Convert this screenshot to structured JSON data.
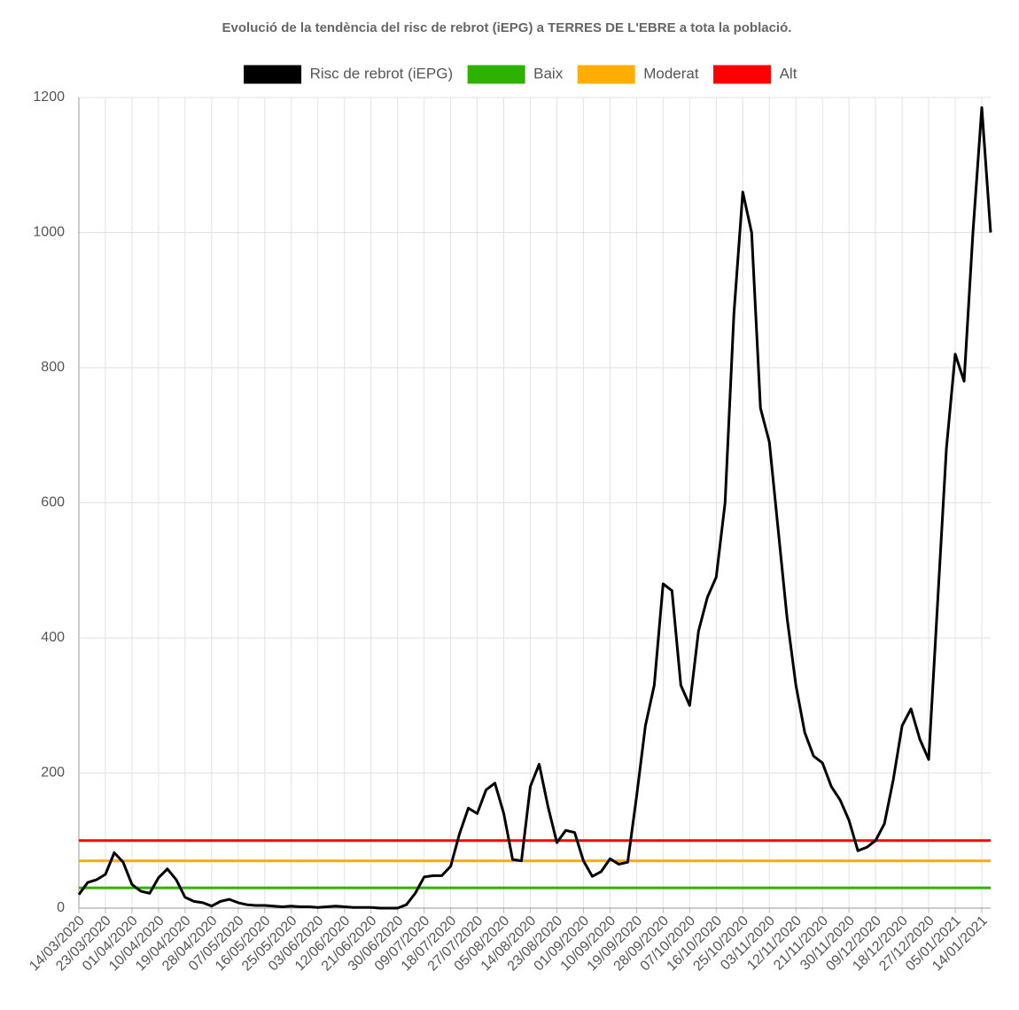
{
  "chart_data": {
    "type": "line",
    "title": "Evolució de la tendència del risc de rebrot (iEPG) a TERRES DE L'EBRE a tota la població.",
    "categories": [
      "14/03/2020",
      null,
      null,
      "23/03/2020",
      null,
      null,
      "01/04/2020",
      null,
      null,
      "10/04/2020",
      null,
      null,
      "19/04/2020",
      null,
      null,
      "28/04/2020",
      null,
      null,
      "07/05/2020",
      null,
      null,
      "16/05/2020",
      null,
      null,
      "25/05/2020",
      null,
      null,
      "03/06/2020",
      null,
      null,
      "12/06/2020",
      null,
      null,
      "21/06/2020",
      null,
      null,
      "30/06/2020",
      null,
      null,
      "09/07/2020",
      null,
      null,
      "18/07/2020",
      null,
      null,
      "27/07/2020",
      null,
      null,
      "05/08/2020",
      null,
      null,
      "14/08/2020",
      null,
      null,
      "23/08/2020",
      null,
      null,
      "01/09/2020",
      null,
      null,
      "10/09/2020",
      null,
      null,
      "19/09/2020",
      null,
      null,
      "28/09/2020",
      null,
      null,
      "07/10/2020",
      null,
      null,
      "16/10/2020",
      null,
      null,
      "25/10/2020",
      null,
      null,
      "03/11/2020",
      null,
      null,
      "12/11/2020",
      null,
      null,
      "21/11/2020",
      null,
      null,
      "30/11/2020",
      null,
      null,
      "09/12/2020",
      null,
      null,
      "18/12/2020",
      null,
      null,
      "27/12/2020",
      null,
      null,
      "05/01/2021",
      null,
      null,
      "14/01/2021",
      null
    ],
    "series": [
      {
        "name": "Risc de rebrot (iEPG)",
        "color": "#000000",
        "values": [
          20,
          38,
          42,
          50,
          82,
          68,
          35,
          25,
          22,
          45,
          58,
          42,
          16,
          10,
          8,
          3,
          10,
          13,
          8,
          5,
          4,
          4,
          3,
          2,
          3,
          2,
          2,
          1,
          2,
          3,
          2,
          1,
          1,
          1,
          0,
          0,
          0,
          5,
          22,
          46,
          48,
          48,
          62,
          110,
          148,
          140,
          175,
          185,
          140,
          72,
          70,
          180,
          213,
          150,
          97,
          115,
          112,
          70,
          47,
          54,
          73,
          65,
          68,
          165,
          270,
          330,
          480,
          470,
          330,
          300,
          410,
          460,
          490,
          600,
          880,
          1060,
          1000,
          740,
          690,
          560,
          430,
          330,
          260,
          225,
          215,
          180,
          160,
          130,
          85,
          90,
          100,
          125,
          190,
          270,
          295,
          250,
          220,
          450,
          680,
          820,
          780,
          1000,
          1185,
          1000
        ]
      }
    ],
    "thresholds": [
      {
        "name": "Baix",
        "color": "#2db200",
        "value": 30
      },
      {
        "name": "Moderat",
        "color": "#ffae00",
        "value": 70
      },
      {
        "name": "Alt",
        "color": "#ff0000",
        "value": 100
      }
    ],
    "ylim": [
      0,
      1200
    ],
    "yticks": [
      0,
      200,
      400,
      600,
      800,
      1000,
      1200
    ],
    "grid": true
  }
}
